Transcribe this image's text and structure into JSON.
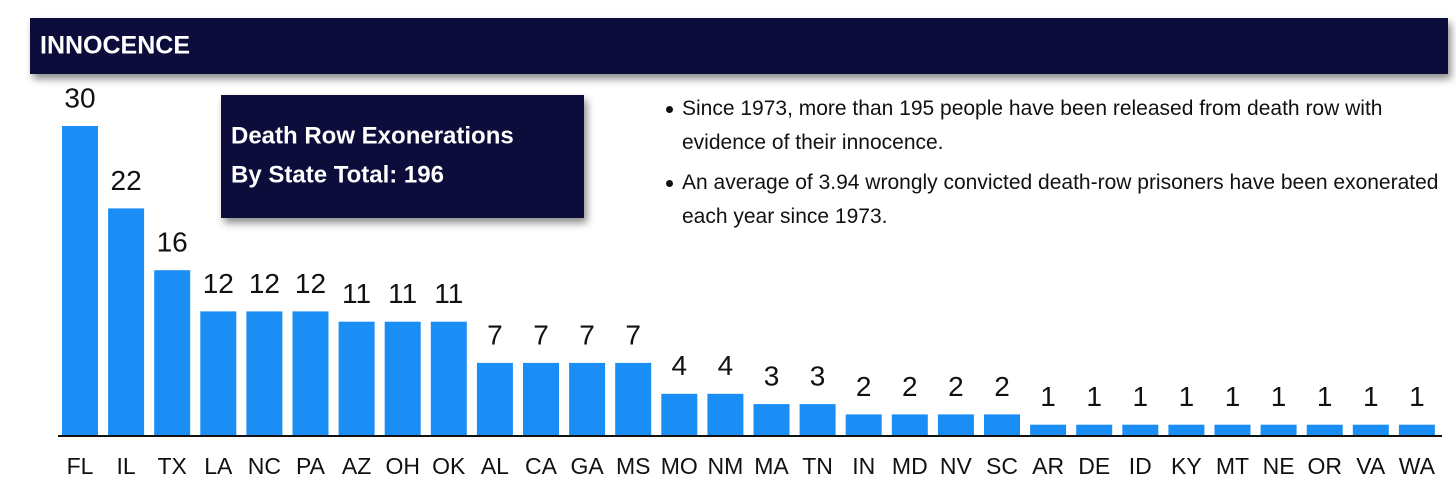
{
  "chart_data": {
    "type": "bar",
    "title": "INNOCENCE",
    "annotation_box": [
      "Death Row Exonerations",
      "By State Total: 196"
    ],
    "notes": [
      "Since 1973, more than 195 people have been released from death row with evidence of their innocence.",
      "An average of 3.94 wrongly convicted death-row prisoners have been exonerated each year since 1973."
    ],
    "categories": [
      "FL",
      "IL",
      "TX",
      "LA",
      "NC",
      "PA",
      "AZ",
      "OH",
      "OK",
      "AL",
      "CA",
      "GA",
      "MS",
      "MO",
      "NM",
      "MA",
      "TN",
      "IN",
      "MD",
      "NV",
      "SC",
      "AR",
      "DE",
      "ID",
      "KY",
      "MT",
      "NE",
      "OR",
      "VA",
      "WA"
    ],
    "values": [
      30,
      22,
      16,
      12,
      12,
      12,
      11,
      11,
      11,
      7,
      7,
      7,
      7,
      4,
      4,
      3,
      3,
      2,
      2,
      2,
      2,
      1,
      1,
      1,
      1,
      1,
      1,
      1,
      1,
      1
    ],
    "color": "#1b8ef5"
  }
}
